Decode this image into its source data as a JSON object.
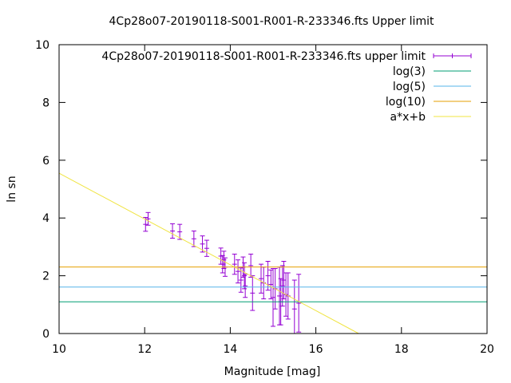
{
  "chart_data": {
    "type": "scatter",
    "title": "4Cp28o07-20190118-S001-R001-R-233346.fts Upper limit",
    "xlabel": "Magnitude [mag]",
    "ylabel": "ln sn",
    "xlim": [
      10,
      20
    ],
    "ylim": [
      0,
      10
    ],
    "x_ticks": [
      10,
      12,
      14,
      16,
      18,
      20
    ],
    "y_ticks": [
      0,
      2,
      4,
      6,
      8,
      10
    ],
    "grid": false,
    "legend_position": "top-right",
    "series": [
      {
        "name": "4Cp28o07-20190118-S001-R001-R-233346.fts upper limit",
        "kind": "errorbars",
        "color": "#9400d3",
        "points": [
          {
            "x": 12.02,
            "y": 3.78,
            "err": 0.24
          },
          {
            "x": 12.08,
            "y": 3.97,
            "err": 0.22
          },
          {
            "x": 12.65,
            "y": 3.55,
            "err": 0.25
          },
          {
            "x": 12.82,
            "y": 3.52,
            "err": 0.26
          },
          {
            "x": 13.15,
            "y": 3.28,
            "err": 0.27
          },
          {
            "x": 13.35,
            "y": 3.1,
            "err": 0.28
          },
          {
            "x": 13.45,
            "y": 2.95,
            "err": 0.28
          },
          {
            "x": 13.78,
            "y": 2.68,
            "err": 0.28
          },
          {
            "x": 13.82,
            "y": 2.4,
            "err": 0.3
          },
          {
            "x": 13.85,
            "y": 2.55,
            "err": 0.3
          },
          {
            "x": 13.88,
            "y": 2.3,
            "err": 0.32
          },
          {
            "x": 14.1,
            "y": 2.4,
            "err": 0.35
          },
          {
            "x": 14.18,
            "y": 2.15,
            "err": 0.4
          },
          {
            "x": 14.25,
            "y": 1.85,
            "err": 0.42
          },
          {
            "x": 14.3,
            "y": 2.3,
            "err": 0.35
          },
          {
            "x": 14.33,
            "y": 2.0,
            "err": 0.45
          },
          {
            "x": 14.35,
            "y": 1.65,
            "err": 0.4
          },
          {
            "x": 14.48,
            "y": 2.35,
            "err": 0.4
          },
          {
            "x": 14.52,
            "y": 1.4,
            "err": 0.6
          },
          {
            "x": 14.72,
            "y": 1.9,
            "err": 0.5
          },
          {
            "x": 14.78,
            "y": 1.75,
            "err": 0.55
          },
          {
            "x": 14.88,
            "y": 2.0,
            "err": 0.5
          },
          {
            "x": 14.95,
            "y": 1.7,
            "err": 0.5
          },
          {
            "x": 15.0,
            "y": 1.25,
            "err": 1.0
          },
          {
            "x": 15.05,
            "y": 1.55,
            "err": 0.7
          },
          {
            "x": 15.15,
            "y": 1.3,
            "err": 1.0
          },
          {
            "x": 15.18,
            "y": 1.1,
            "err": 0.8
          },
          {
            "x": 15.22,
            "y": 1.65,
            "err": 0.7
          },
          {
            "x": 15.25,
            "y": 1.85,
            "err": 0.65
          },
          {
            "x": 15.3,
            "y": 1.35,
            "err": 0.75
          },
          {
            "x": 15.35,
            "y": 1.3,
            "err": 0.8
          },
          {
            "x": 15.5,
            "y": 0.85,
            "err": 1.0
          },
          {
            "x": 15.6,
            "y": 1.05,
            "err": 1.0
          }
        ]
      },
      {
        "name": "log(3)",
        "kind": "hline",
        "y": 1.0986,
        "color": "#009e73"
      },
      {
        "name": "log(5)",
        "kind": "hline",
        "y": 1.6094,
        "color": "#56b4e9"
      },
      {
        "name": "log(10)",
        "kind": "hline",
        "y": 2.3026,
        "color": "#e69f00"
      },
      {
        "name": "a*x+b",
        "kind": "line",
        "color": "#f0e442",
        "points": [
          {
            "x": 10,
            "y": 5.55
          },
          {
            "x": 17,
            "y": 0
          }
        ]
      }
    ]
  }
}
